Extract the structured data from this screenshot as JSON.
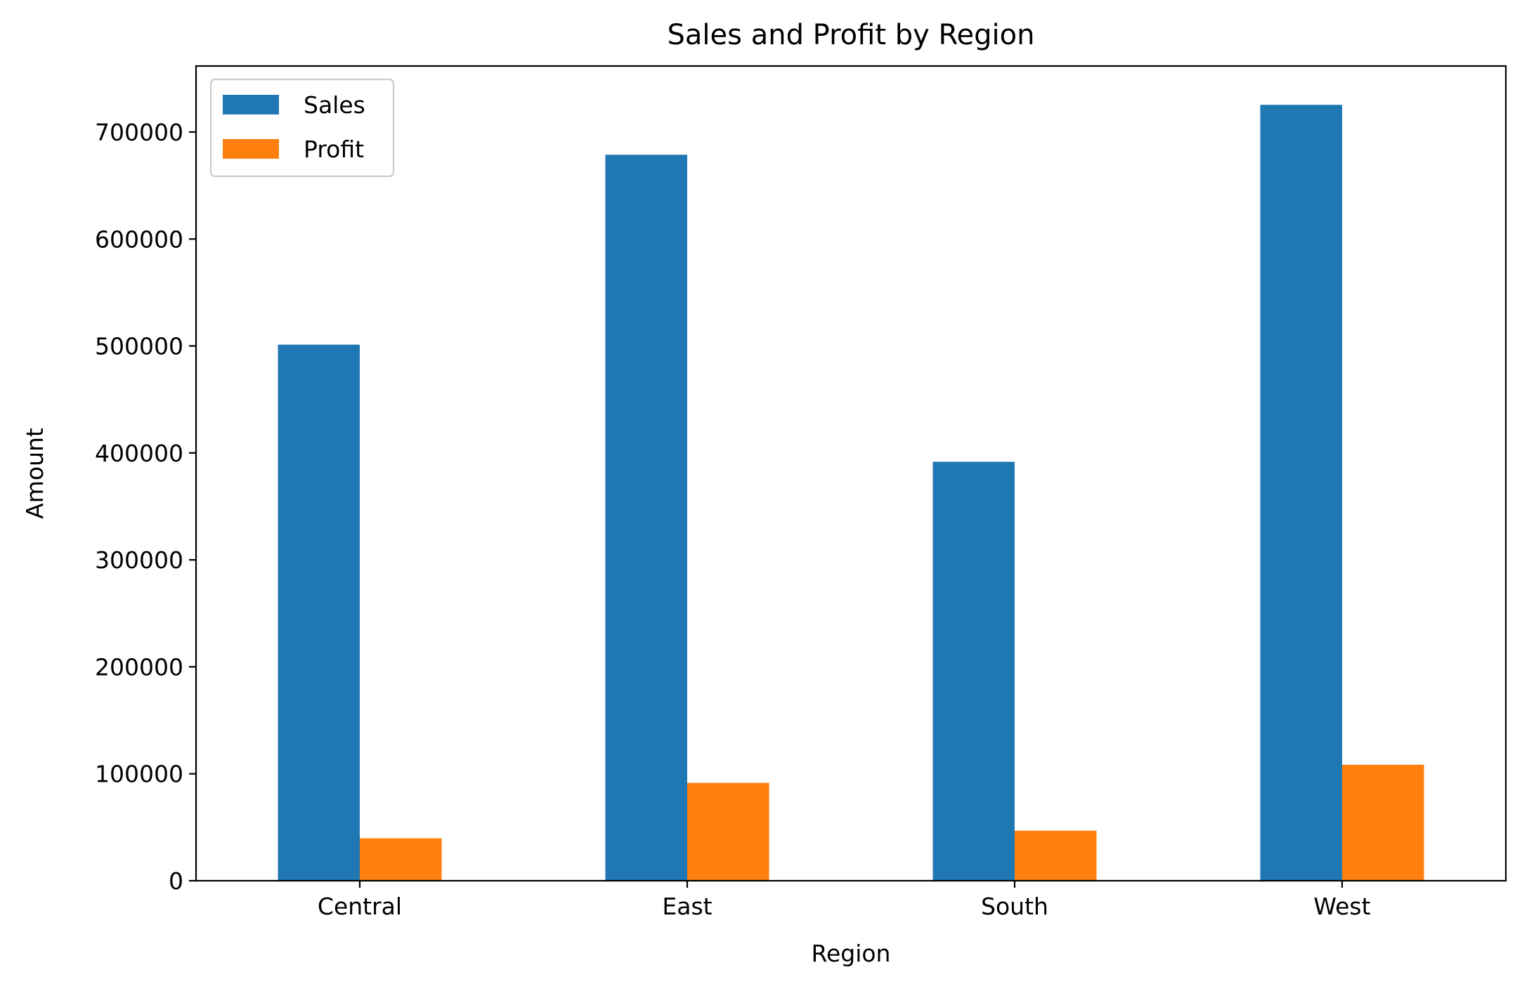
{
  "chart_data": {
    "type": "bar",
    "title": "Sales and Profit by Region",
    "xlabel": "Region",
    "ylabel": "Amount",
    "categories": [
      "Central",
      "East",
      "South",
      "West"
    ],
    "series": [
      {
        "name": "Sales",
        "color": "#1f77b4",
        "values": [
          501240,
          678781,
          391722,
          725458
        ]
      },
      {
        "name": "Profit",
        "color": "#ff7f0e",
        "values": [
          39706,
          91523,
          46749,
          108418
        ]
      }
    ],
    "ylim": [
      0,
      761730
    ],
    "yticks": [
      0,
      100000,
      200000,
      300000,
      400000,
      500000,
      600000,
      700000
    ],
    "ytick_labels": [
      "0",
      "100000",
      "200000",
      "300000",
      "400000",
      "500000",
      "600000",
      "700000"
    ],
    "grid": false,
    "legend_position": "upper left"
  }
}
